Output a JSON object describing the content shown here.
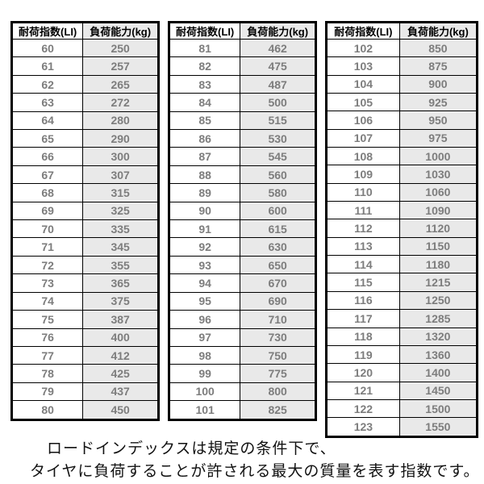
{
  "colors": {
    "background": "#ffffff",
    "border": "#000000",
    "header_text": "#000000",
    "data_text": "#7d7d7d",
    "kg_column_background": "#e9e9e9",
    "caption_text": "#111111"
  },
  "chart_data": [
    {
      "type": "table",
      "columns": [
        "耐荷指数(LI)",
        "負荷能力(kg)"
      ],
      "rows": [
        [
          60,
          250
        ],
        [
          61,
          257
        ],
        [
          62,
          265
        ],
        [
          63,
          272
        ],
        [
          64,
          280
        ],
        [
          65,
          290
        ],
        [
          66,
          300
        ],
        [
          67,
          307
        ],
        [
          68,
          315
        ],
        [
          69,
          325
        ],
        [
          70,
          335
        ],
        [
          71,
          345
        ],
        [
          72,
          355
        ],
        [
          73,
          365
        ],
        [
          74,
          375
        ],
        [
          75,
          387
        ],
        [
          76,
          400
        ],
        [
          77,
          412
        ],
        [
          78,
          425
        ],
        [
          79,
          437
        ],
        [
          80,
          450
        ]
      ]
    },
    {
      "type": "table",
      "columns": [
        "耐荷指数(LI)",
        "負荷能力(kg)"
      ],
      "rows": [
        [
          81,
          462
        ],
        [
          82,
          475
        ],
        [
          83,
          487
        ],
        [
          84,
          500
        ],
        [
          85,
          515
        ],
        [
          86,
          530
        ],
        [
          87,
          545
        ],
        [
          88,
          560
        ],
        [
          89,
          580
        ],
        [
          90,
          600
        ],
        [
          91,
          615
        ],
        [
          92,
          630
        ],
        [
          93,
          650
        ],
        [
          94,
          670
        ],
        [
          95,
          690
        ],
        [
          96,
          710
        ],
        [
          97,
          730
        ],
        [
          98,
          750
        ],
        [
          99,
          775
        ],
        [
          100,
          800
        ],
        [
          101,
          825
        ]
      ]
    },
    {
      "type": "table",
      "columns": [
        "耐荷指数(LI)",
        "負荷能力(kg)"
      ],
      "rows": [
        [
          102,
          850
        ],
        [
          103,
          875
        ],
        [
          104,
          900
        ],
        [
          105,
          925
        ],
        [
          106,
          950
        ],
        [
          107,
          975
        ],
        [
          108,
          1000
        ],
        [
          109,
          1030
        ],
        [
          110,
          1060
        ],
        [
          111,
          1090
        ],
        [
          112,
          1120
        ],
        [
          113,
          1150
        ],
        [
          114,
          1180
        ],
        [
          115,
          1215
        ],
        [
          116,
          1250
        ],
        [
          117,
          1285
        ],
        [
          118,
          1320
        ],
        [
          119,
          1360
        ],
        [
          120,
          1400
        ],
        [
          121,
          1450
        ],
        [
          122,
          1500
        ],
        [
          123,
          1550
        ]
      ]
    }
  ],
  "footer": {
    "line1": "ロードインデックスは規定の条件下で、",
    "line2": "タイヤに負荷することが許される最大の質量を表す指数です。"
  }
}
